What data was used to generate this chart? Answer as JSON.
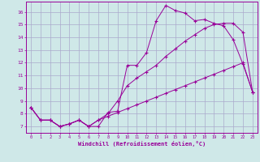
{
  "xlabel": "Windchill (Refroidissement éolien,°C)",
  "background_color": "#cfe8e8",
  "grid_color": "#aaaacc",
  "line_color": "#990099",
  "x_hours": [
    0,
    1,
    2,
    3,
    4,
    5,
    6,
    7,
    8,
    9,
    10,
    11,
    12,
    13,
    14,
    15,
    16,
    17,
    18,
    19,
    20,
    21,
    22,
    23
  ],
  "line1_y": [
    8.5,
    7.5,
    7.5,
    7.0,
    7.2,
    7.5,
    7.0,
    7.0,
    8.1,
    8.2,
    11.8,
    11.8,
    12.8,
    15.3,
    16.5,
    16.1,
    15.9,
    15.3,
    15.4,
    15.1,
    14.9,
    13.8,
    11.9,
    9.7
  ],
  "line2_y": [
    8.5,
    7.5,
    7.5,
    7.0,
    7.2,
    7.5,
    7.0,
    7.5,
    8.0,
    9.0,
    10.2,
    10.8,
    11.3,
    11.8,
    12.5,
    13.1,
    13.7,
    14.2,
    14.7,
    15.0,
    15.1,
    15.1,
    14.4,
    9.7
  ],
  "line3_y": [
    8.5,
    7.5,
    7.5,
    7.0,
    7.2,
    7.5,
    7.0,
    7.5,
    7.8,
    8.1,
    8.4,
    8.7,
    9.0,
    9.3,
    9.6,
    9.9,
    10.2,
    10.5,
    10.8,
    11.1,
    11.4,
    11.7,
    12.0,
    9.7
  ],
  "ylim": [
    6.5,
    16.8
  ],
  "yticks": [
    7,
    8,
    9,
    10,
    11,
    12,
    13,
    14,
    15,
    16
  ],
  "xticks": [
    0,
    1,
    2,
    3,
    4,
    5,
    6,
    7,
    8,
    9,
    10,
    11,
    12,
    13,
    14,
    15,
    16,
    17,
    18,
    19,
    20,
    21,
    22,
    23
  ]
}
